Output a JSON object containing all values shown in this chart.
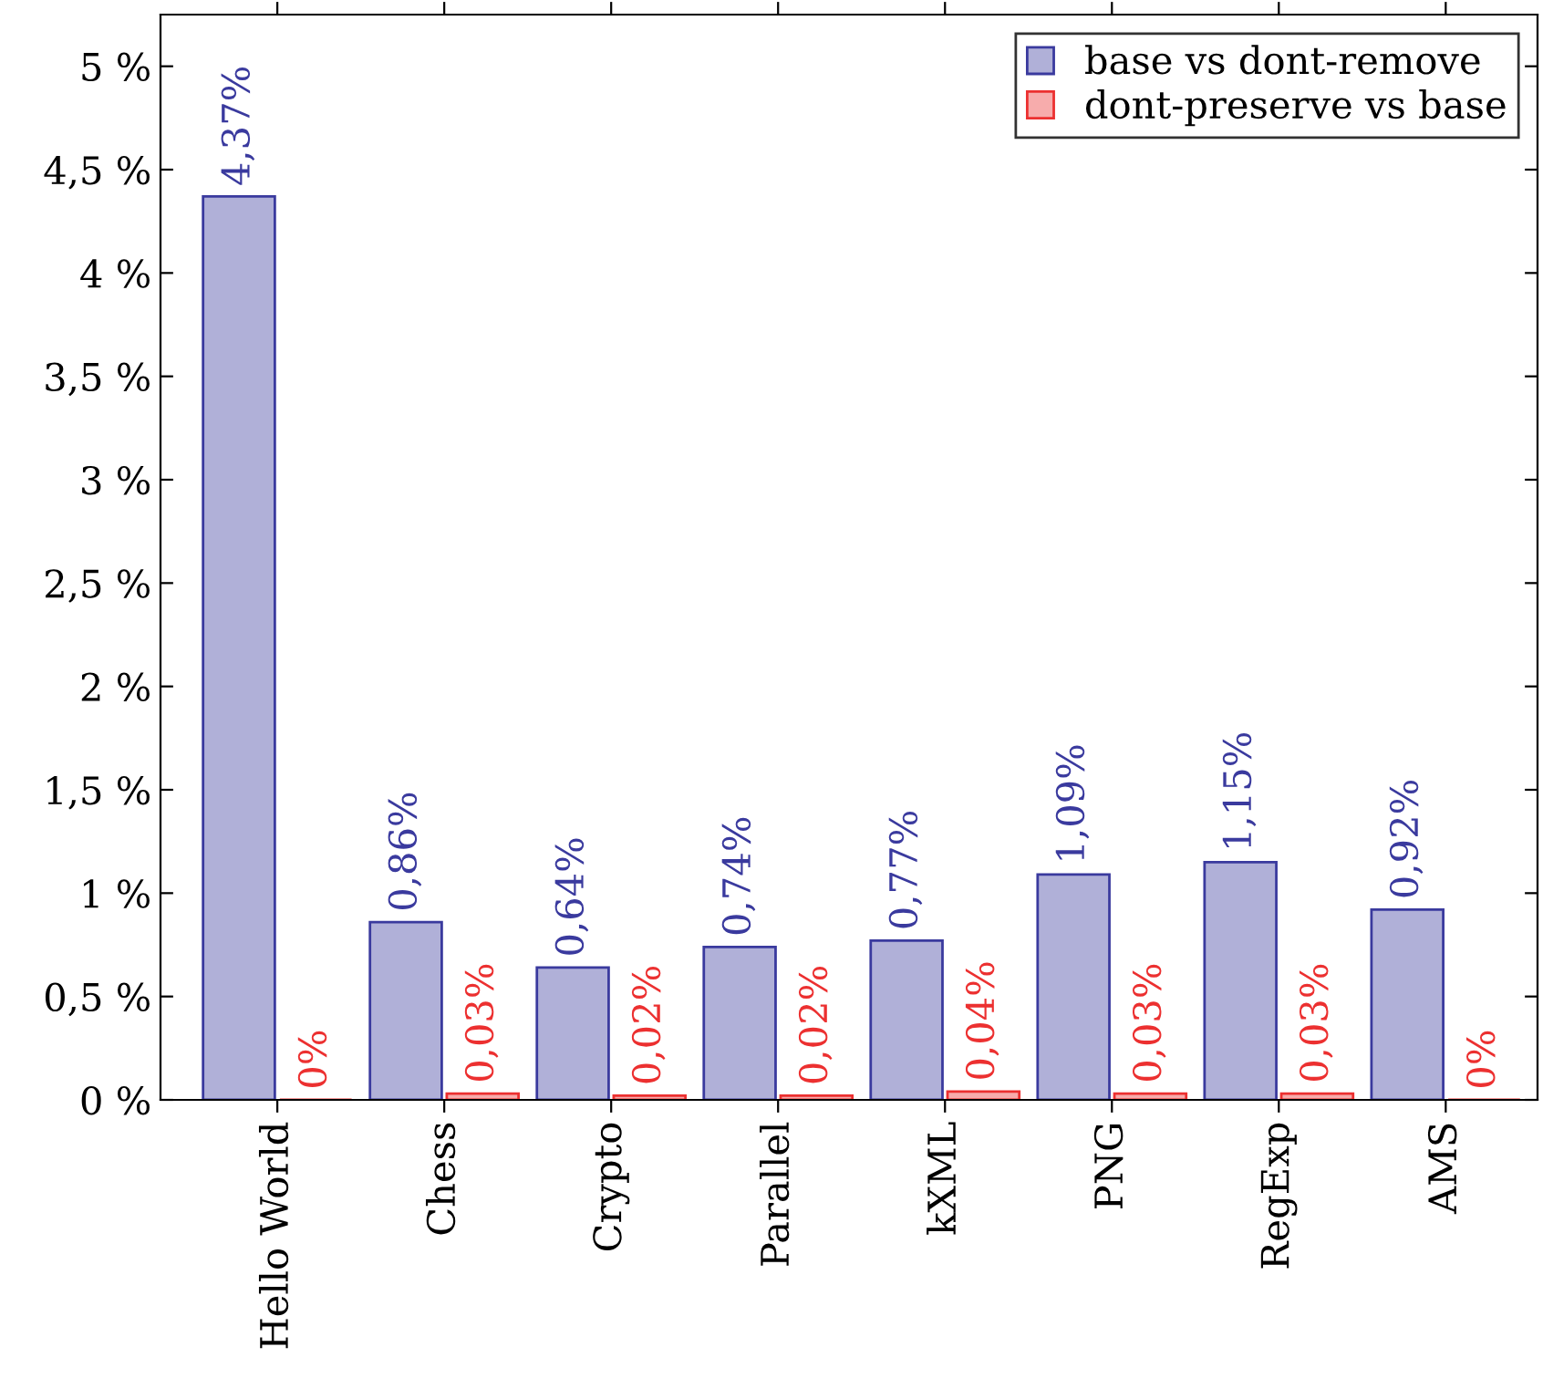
{
  "chart_data": {
    "type": "bar",
    "categories": [
      "Hello World",
      "Chess",
      "Crypto",
      "Parallel",
      "kXML",
      "PNG",
      "RegExp",
      "AMS"
    ],
    "series": [
      {
        "name": "base vs dont-remove",
        "color": "#3a3a9e",
        "values": [
          4.37,
          0.86,
          0.64,
          0.74,
          0.77,
          1.09,
          1.15,
          0.92
        ],
        "value_labels": [
          "4,37%",
          "0,86%",
          "0,64%",
          "0,74%",
          "0,77%",
          "1,09%",
          "1,15%",
          "0,92%"
        ]
      },
      {
        "name": "dont-preserve vs base",
        "color": "#ec3030",
        "values": [
          0,
          0.03,
          0.02,
          0.02,
          0.04,
          0.03,
          0.03,
          0
        ],
        "value_labels": [
          "0%",
          "0,03%",
          "0,02%",
          "0,02%",
          "0,04%",
          "0,03%",
          "0,03%",
          "0%"
        ]
      }
    ],
    "ylim": [
      0,
      5.25
    ],
    "yticks": [
      {
        "value": 0,
        "label": "0 %"
      },
      {
        "value": 0.5,
        "label": "0,5 %"
      },
      {
        "value": 1,
        "label": "1 %"
      },
      {
        "value": 1.5,
        "label": "1,5 %"
      },
      {
        "value": 2,
        "label": "2 %"
      },
      {
        "value": 2.5,
        "label": "2,5 %"
      },
      {
        "value": 3,
        "label": "3 %"
      },
      {
        "value": 3.5,
        "label": "3,5 %"
      },
      {
        "value": 4,
        "label": "4 %"
      },
      {
        "value": 4.5,
        "label": "4,5 %"
      },
      {
        "value": 5,
        "label": "5 %"
      }
    ],
    "legend": "top right",
    "grid": false
  }
}
